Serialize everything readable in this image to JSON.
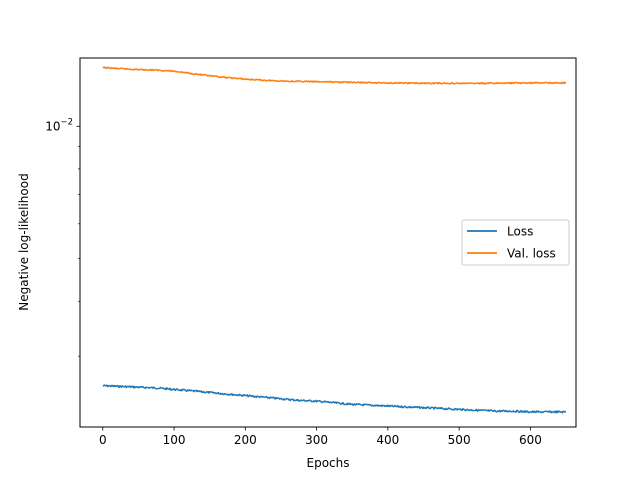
{
  "chart_data": {
    "type": "line",
    "title": "",
    "xlabel": "Epochs",
    "ylabel": "Negative log-likelihood",
    "xlim": [
      -32,
      664
    ],
    "ylim": [
      0.00207,
      0.0143
    ],
    "yscale": "log",
    "xticks": [
      0,
      100,
      200,
      300,
      400,
      500,
      600
    ],
    "xtick_labels": [
      "0",
      "100",
      "200",
      "300",
      "400",
      "500",
      "600"
    ],
    "yticks_major": [
      0.01
    ],
    "ytick_major_labels": [
      "10^-2"
    ],
    "yticks_minor": [
      0.003,
      0.004,
      0.005,
      0.006,
      0.007,
      0.008,
      0.009
    ],
    "grid": false,
    "legend": {
      "location": "center-right",
      "entries": [
        {
          "label": "Loss",
          "color": "#1f77b4"
        },
        {
          "label": "Val. loss",
          "color": "#ff7f0e"
        }
      ]
    },
    "series": [
      {
        "name": "Loss",
        "color": "#1f77b4",
        "x": [
          0,
          25,
          50,
          75,
          100,
          125,
          150,
          175,
          200,
          225,
          250,
          275,
          300,
          325,
          350,
          375,
          400,
          425,
          450,
          475,
          500,
          525,
          550,
          575,
          600,
          625,
          650
        ],
        "y": [
          0.00257,
          0.00256,
          0.00255,
          0.00254,
          0.00252,
          0.0025,
          0.00248,
          0.00246,
          0.00244,
          0.00242,
          0.0024,
          0.00238,
          0.00237,
          0.00235,
          0.00233,
          0.00232,
          0.00231,
          0.0023,
          0.00229,
          0.00228,
          0.00227,
          0.00226,
          0.00225,
          0.00225,
          0.00224,
          0.00224,
          0.00224
        ]
      },
      {
        "name": "Val. loss",
        "color": "#ff7f0e",
        "x": [
          0,
          25,
          50,
          75,
          100,
          125,
          150,
          175,
          200,
          225,
          250,
          275,
          300,
          325,
          350,
          375,
          400,
          425,
          450,
          475,
          500,
          525,
          550,
          575,
          600,
          625,
          650
        ],
        "y": [
          0.0136,
          0.01352,
          0.01346,
          0.01342,
          0.01335,
          0.01318,
          0.01302,
          0.0129,
          0.0128,
          0.01273,
          0.01268,
          0.01265,
          0.01263,
          0.01261,
          0.01259,
          0.01257,
          0.01255,
          0.01254,
          0.01253,
          0.01253,
          0.01252,
          0.01252,
          0.01253,
          0.01254,
          0.01255,
          0.01256,
          0.01255
        ]
      }
    ]
  }
}
